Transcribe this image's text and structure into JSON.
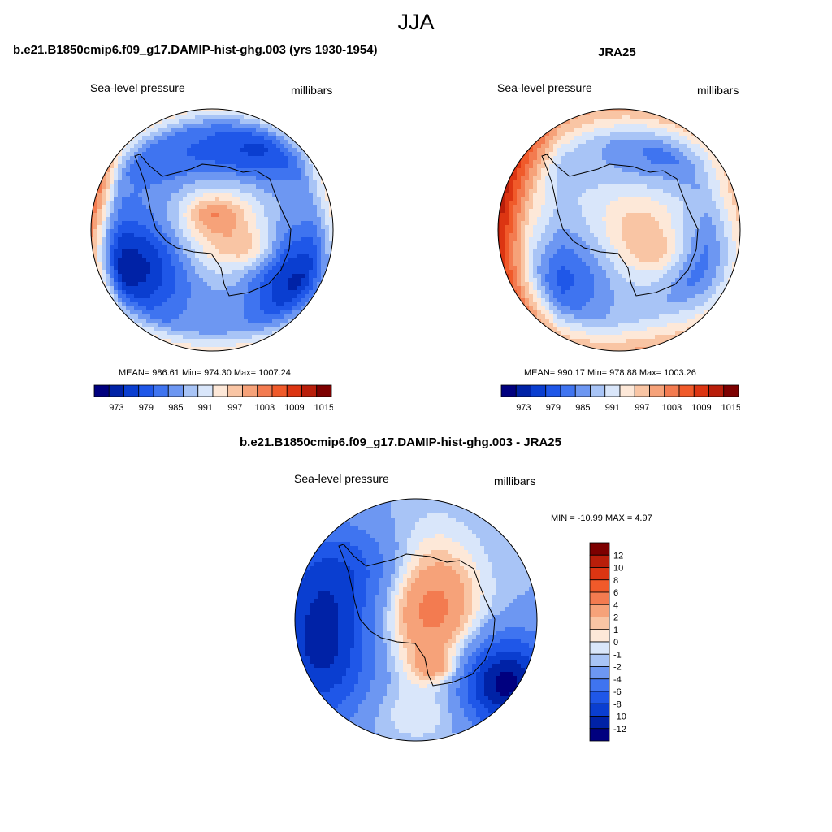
{
  "figure": {
    "title": "JJA"
  },
  "colors": {
    "palette": [
      "#00007f",
      "#0022a6",
      "#0a3ed0",
      "#1f57e8",
      "#3f74f0",
      "#6d97f2",
      "#a8c4f6",
      "#d9e6fa",
      "#fde8d8",
      "#f9c5a4",
      "#f6a279",
      "#f37b50",
      "#f05a2a",
      "#dc3512",
      "#b91e0a",
      "#7d0000"
    ],
    "coastline": "#000000"
  },
  "chart_data": [
    {
      "type": "heatmap",
      "projection": "south-polar-stereographic",
      "title": "b.e21.B1850cmip6.f09_g17.DAMIP-hist-ghg.003 (yrs 1930-1954)",
      "left_label": "Sea-level pressure",
      "right_label": "millibars",
      "stats_text": "MEAN= 986.61  Min= 974.30  Max= 1007.24",
      "mean": 986.61,
      "min": 974.3,
      "max": 1007.24,
      "colorbar_ticks": [
        "973",
        "979",
        "985",
        "991",
        "997",
        "1003",
        "1009",
        "1015"
      ],
      "contour_levels": [
        970,
        973,
        976,
        979,
        982,
        985,
        988,
        991,
        994,
        997,
        1000,
        1003,
        1006,
        1009,
        1012,
        1015
      ]
    },
    {
      "type": "heatmap",
      "projection": "south-polar-stereographic",
      "title": "JRA25",
      "left_label": "Sea-level pressure",
      "right_label": "millibars",
      "stats_text": "MEAN= 990.17  Min= 978.88  Max= 1003.26",
      "mean": 990.17,
      "min": 978.88,
      "max": 1003.26,
      "colorbar_ticks": [
        "973",
        "979",
        "985",
        "991",
        "997",
        "1003",
        "1009",
        "1015"
      ],
      "contour_levels": [
        970,
        973,
        976,
        979,
        982,
        985,
        988,
        991,
        994,
        997,
        1000,
        1003,
        1006,
        1009,
        1012,
        1015
      ]
    },
    {
      "type": "heatmap",
      "projection": "south-polar-stereographic",
      "title": "b.e21.B1850cmip6.f09_g17.DAMIP-hist-ghg.003 - JRA25",
      "left_label": "Sea-level pressure",
      "right_label": "millibars",
      "stats_text": "MIN = -10.99 MAX =   4.97",
      "min": -10.99,
      "max": 4.97,
      "colorbar_ticks": [
        "12",
        "10",
        "8",
        "6",
        "4",
        "2",
        "1",
        "0",
        "-1",
        "-2",
        "-4",
        "-6",
        "-8",
        "-10",
        "-12"
      ],
      "contour_levels": [
        -14,
        -12,
        -10,
        -8,
        -6,
        -4,
        -2,
        -1,
        0,
        1,
        2,
        4,
        6,
        8,
        10,
        12
      ]
    }
  ]
}
